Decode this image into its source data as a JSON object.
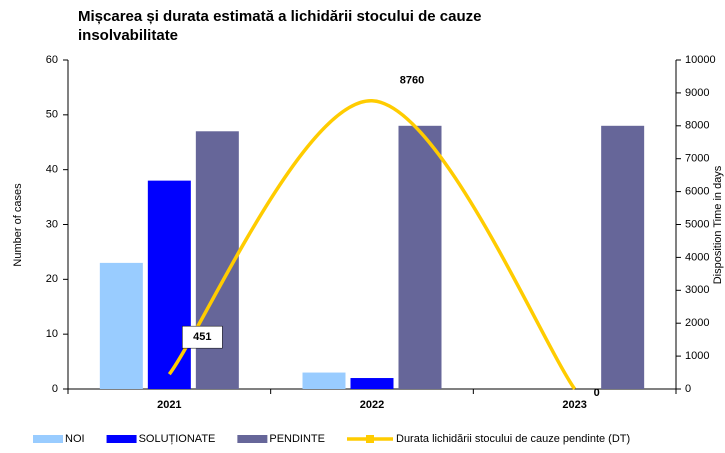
{
  "chart_data": {
    "type": "bar",
    "title": "Mișcarea și durata estimată a lichidării stocului de cauze insolvabilitate",
    "title_lines": [
      "Mișcarea și durata estimată a lichidării stocului de cauze",
      "insolvabilitate"
    ],
    "y_label": "Number of cases",
    "y2_label": "Disposition Time in days",
    "categories": [
      "2021",
      "2022",
      "2023"
    ],
    "series": [
      {
        "name": "NOI",
        "color": "#99ccff",
        "values": [
          23,
          3,
          0
        ]
      },
      {
        "name": "SOLUȚIONATE",
        "color": "#0000ff",
        "values": [
          38,
          2,
          0
        ]
      },
      {
        "name": "PENDINTE",
        "color": "#666699",
        "values": [
          47,
          48,
          48
        ]
      },
      {
        "name": "Durata lichidării stocului de cauze pendinte (DT)",
        "color": "#ffcc00",
        "type": "line",
        "axis": "y2",
        "values": [
          451,
          8760,
          0
        ]
      }
    ],
    "ylim": [
      0,
      60
    ],
    "yticks": [
      0,
      10,
      20,
      30,
      40,
      50,
      60
    ],
    "y2lim": [
      0,
      10000
    ],
    "y2ticks": [
      0,
      1000,
      2000,
      3000,
      4000,
      5000,
      6000,
      7000,
      8000,
      9000,
      10000
    ],
    "legend": "bottom"
  }
}
